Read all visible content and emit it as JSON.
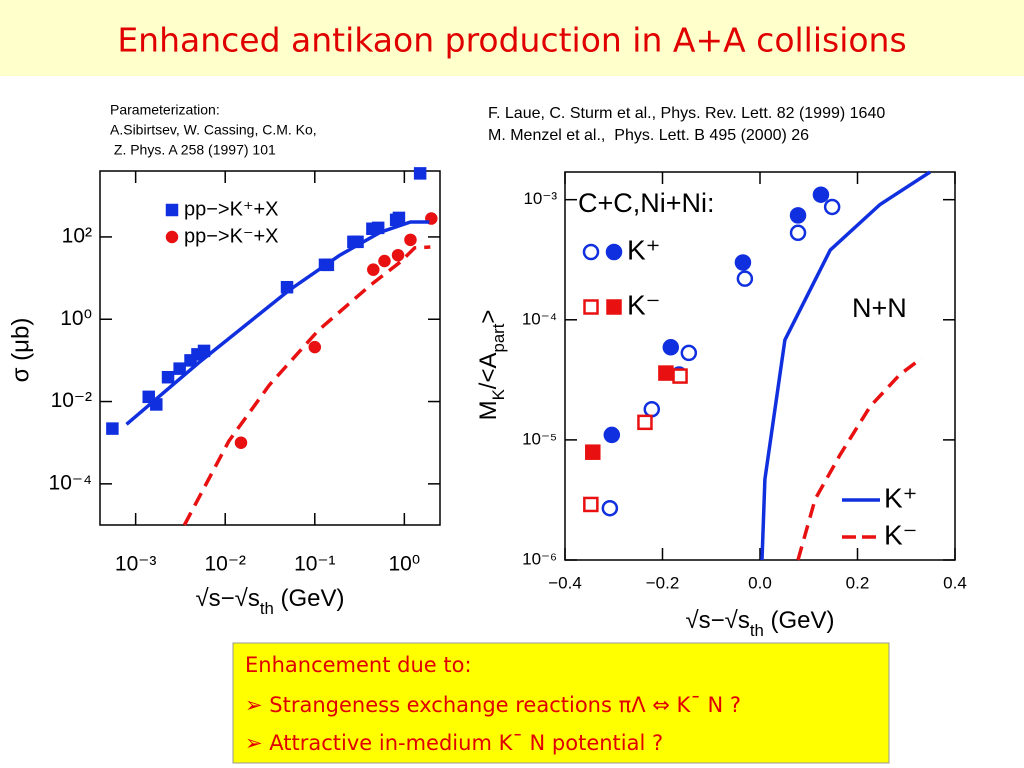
{
  "title": "Enhanced antikaon production in A+A collisions",
  "ref_left": [
    "Parameterization:",
    "A.Sibirtsev, W. Cassing, C.M. Ko,",
    " Z. Phys. A 258 (1997) 101"
  ],
  "ref_right": [
    "F. Laue, C. Sturm et al., Phys. Rev. Lett. 82 (1999) 1640",
    "M. Menzel et al.,  Phys. Lett. B 495 (2000) 26"
  ],
  "box": {
    "heading": "Enhancement due to:",
    "items": [
      "➢ Strangeness exchange reactions πΛ ⇔ K¯ N ?",
      "➢ Attractive in-medium K¯ N potential ?"
    ]
  },
  "chart_data": [
    {
      "type": "scatter",
      "xlog": true,
      "ylog": true,
      "xlim": [
        0.0004,
        2.5
      ],
      "ylim": [
        1e-05,
        4000
      ],
      "xticks": [
        {
          "value": 0.001,
          "label": "10⁻³"
        },
        {
          "value": 0.01,
          "label": "10⁻²"
        },
        {
          "value": 0.1,
          "label": "10⁻¹"
        },
        {
          "value": 1,
          "label": "10⁰"
        }
      ],
      "yticks": [
        {
          "value": 0.0001,
          "label": "10⁻⁴"
        },
        {
          "value": 0.01,
          "label": "10⁻²"
        },
        {
          "value": 1,
          "label": "10⁰"
        },
        {
          "value": 100,
          "label": "10²"
        }
      ],
      "xlabel": [
        "√s−√s",
        "th",
        "  (GeV)"
      ],
      "ylabel": "σ  (μb)",
      "series": [
        {
          "name": "pp−>K⁺+X",
          "color": "#1030e0",
          "marker": "square",
          "filled": true,
          "x": [
            0.00055,
            0.0014,
            0.0017,
            0.0023,
            0.0031,
            0.0041,
            0.0049,
            0.0058,
            0.049,
            0.13,
            0.14,
            0.27,
            0.3,
            0.44,
            0.51,
            0.81,
            0.87,
            1.5
          ],
          "values": [
            0.0022,
            0.013,
            0.0085,
            0.039,
            0.063,
            0.1,
            0.14,
            0.17,
            6.0,
            21,
            21,
            76,
            76,
            158,
            166,
            260,
            290,
            3500
          ]
        },
        {
          "name": "pp−>K⁻+X",
          "color": "#e81010",
          "marker": "circle",
          "filled": true,
          "x": [
            0.015,
            0.1,
            0.45,
            0.6,
            0.85,
            1.17,
            2.0
          ],
          "values": [
            0.001,
            0.21,
            16,
            26,
            36,
            85,
            280
          ]
        },
        {
          "color": "#1030e0",
          "line": "solid",
          "x": [
            0.00079,
            0.0051,
            0.052,
            0.19,
            0.54,
            1.17,
            1.9
          ],
          "values": [
            0.0028,
            0.089,
            5.1,
            36,
            130,
            230,
            230
          ]
        },
        {
          "color": "#e81010",
          "line": "dashed",
          "x": [
            0.0035,
            0.011,
            0.031,
            0.11,
            0.42,
            0.91,
            1.3,
            1.95
          ],
          "values": [
            1e-05,
            0.0011,
            0.025,
            0.54,
            6.8,
            25,
            54,
            57
          ]
        }
      ]
    },
    {
      "type": "scatter",
      "xlog": false,
      "ylog": true,
      "xlim": [
        -0.4,
        0.4
      ],
      "ylim": [
        1e-06,
        0.0017
      ],
      "xticks": [
        {
          "value": -0.4,
          "label": "−0.4"
        },
        {
          "value": -0.2,
          "label": "−0.2"
        },
        {
          "value": 0,
          "label": "0.0"
        },
        0.2,
        0.4
      ],
      "yticks": [
        {
          "value": 1e-06,
          "label": "10⁻⁶"
        },
        {
          "value": 1e-05,
          "label": "10⁻⁵"
        },
        {
          "value": 0.0001,
          "label": "10⁻⁴"
        },
        {
          "value": 0.001,
          "label": "10⁻³"
        }
      ],
      "xlabel": [
        "√s−√s",
        "th",
        "   (GeV)"
      ],
      "ylabel": [
        "M",
        "K",
        "/<A",
        "part",
        ">"
      ],
      "legend_title": "C+C,Ni+Ni:",
      "annotation": "N+N",
      "series": [
        {
          "color": "#1030e0",
          "marker": "circle",
          "filled": false,
          "x": [
            -0.308,
            -0.222,
            -0.146,
            -0.031,
            0.078,
            0.148
          ],
          "values": [
            2.7e-06,
            1.8e-05,
            5.3e-05,
            0.00022,
            0.00053,
            0.00087
          ]
        },
        {
          "name": "K⁺",
          "color": "#1030e0",
          "marker": "circle",
          "filled": true,
          "x": [
            -0.304,
            -0.166,
            -0.183,
            -0.035,
            0.078,
            0.125
          ],
          "values": [
            1.1e-05,
            3.5e-05,
            5.9e-05,
            0.0003,
            0.00074,
            0.0011
          ]
        },
        {
          "color": "#e81010",
          "marker": "square",
          "filled": false,
          "x": [
            -0.347,
            -0.236,
            -0.164
          ],
          "values": [
            2.9e-06,
            1.4e-05,
            3.4e-05
          ]
        },
        {
          "name": "K⁻",
          "color": "#e81010",
          "marker": "square",
          "filled": true,
          "x": [
            -0.343,
            -0.193
          ],
          "values": [
            7.9e-06,
            3.6e-05
          ]
        },
        {
          "name": "K⁺",
          "color": "#1030e0",
          "line": "solid",
          "x": [
            0.004,
            0.01,
            0.051,
            0.144,
            0.246,
            0.349
          ],
          "values": [
            1e-06,
            4.7e-06,
            6.8e-05,
            0.00038,
            0.00091,
            0.0017
          ]
        },
        {
          "name": "K⁻",
          "color": "#e81010",
          "line": "dashed",
          "x": [
            0.078,
            0.113,
            0.164,
            0.226,
            0.287,
            0.332
          ],
          "values": [
            1e-06,
            3.2e-06,
            7.5e-06,
            1.9e-05,
            3.5e-05,
            4.8e-05
          ]
        }
      ]
    }
  ]
}
